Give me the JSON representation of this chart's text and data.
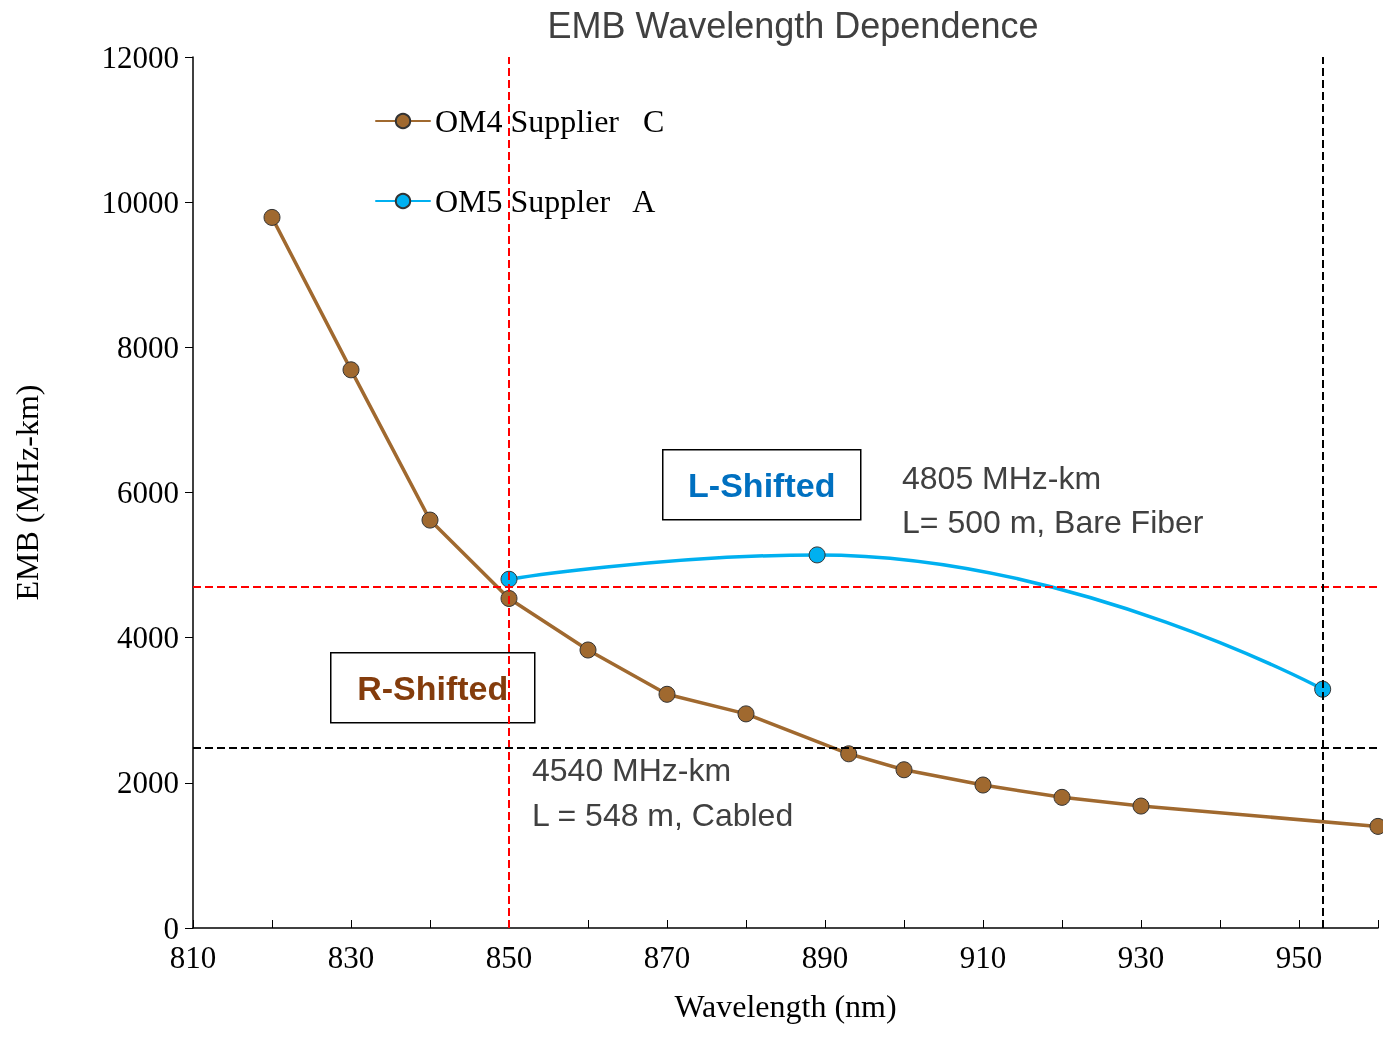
{
  "chart_data": {
    "type": "line",
    "title": "EMB Wavelength Dependence",
    "xlabel": "Wavelength (nm)",
    "ylabel": "EMB (MHz-km)",
    "series": [
      {
        "name": "OM4 Supplier   C",
        "color": "#a0692f",
        "x": [
          820,
          830,
          840,
          850,
          860,
          870,
          880,
          893,
          900,
          910,
          920,
          930,
          960
        ],
        "values": [
          9790,
          7690,
          5620,
          4540,
          3830,
          3220,
          2950,
          2400,
          2180,
          1970,
          1800,
          1680,
          1400
        ]
      },
      {
        "name": "OM5 Suppler   A",
        "color": "#00b0f0",
        "x": [
          850,
          889,
          953
        ],
        "values": [
          4805,
          5140,
          3290
        ]
      }
    ],
    "xlim": [
      810,
      960
    ],
    "xticks": [
      810,
      {
        "value": 820,
        "label": null
      },
      830,
      {
        "value": 840,
        "label": null
      },
      850,
      {
        "value": 860,
        "label": null
      },
      870,
      {
        "value": 880,
        "label": null
      },
      890,
      {
        "value": 900,
        "label": null
      },
      910,
      {
        "value": 920,
        "label": null
      },
      930,
      {
        "value": 940,
        "label": null
      },
      950,
      {
        "value": 960,
        "label": null
      }
    ],
    "ylim": [
      0,
      12000
    ],
    "yticks": [
      0,
      2000,
      4000,
      6000,
      8000,
      10000,
      12000
    ],
    "ref_lines": [
      {
        "axis": "x",
        "value": 850,
        "color": "#ff0000",
        "line_style": "dashed"
      },
      {
        "axis": "y",
        "value": 4700,
        "color": "#ff0000",
        "line_style": "dashed"
      },
      {
        "axis": "x",
        "value": 953,
        "color": "#000000",
        "line_style": "dashed"
      },
      {
        "axis": "y",
        "value": 2480,
        "color": "#000000",
        "line_style": "dashed"
      }
    ],
    "annotations": [
      "L-Shifted",
      "4805 MHz-km",
      "L= 500 m, Bare Fiber",
      "R-Shifted",
      "4540 MHz-km",
      "L = 548 m, Cabled"
    ],
    "grid": false,
    "legend": "top left",
    "marker": "circle",
    "line_style": "solid"
  }
}
